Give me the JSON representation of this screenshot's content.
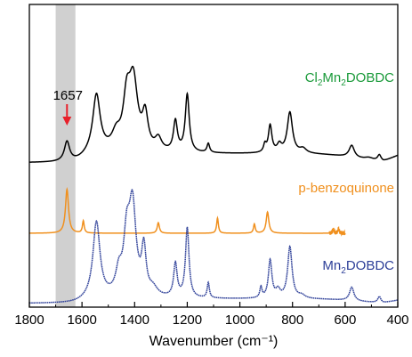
{
  "chart_data": {
    "type": "line",
    "title": "",
    "xlabel": "Wavenumber (cm⁻¹)",
    "ylabel": "",
    "xlim": [
      1800,
      400
    ],
    "x_reversed": true,
    "x_ticks": [
      "1800",
      "1600",
      "1400",
      "1200",
      "1000",
      "800",
      "600",
      "400"
    ],
    "highlight_band": {
      "x": [
        1700,
        1625
      ],
      "color": "#d0d0d0"
    },
    "annotation": {
      "text": "1657",
      "x": 1657,
      "arrow_color": "#e8202a"
    },
    "grid": false,
    "series": [
      {
        "name": "Cl2Mn2DOBDC",
        "label_parts": [
          {
            "t": "Cl",
            "sub": false
          },
          {
            "t": "2",
            "sub": true
          },
          {
            "t": "Mn",
            "sub": false
          },
          {
            "t": "2",
            "sub": true
          },
          {
            "t": "DOBDC",
            "sub": false
          }
        ],
        "color": "#000000",
        "baseline": 0.16,
        "peaks": [
          {
            "x": 1657,
            "h": 0.13,
            "w": 12
          },
          {
            "x": 1545,
            "h": 0.38,
            "w": 17
          },
          {
            "x": 1470,
            "h": 0.1,
            "w": 20
          },
          {
            "x": 1430,
            "h": 0.3,
            "w": 16
          },
          {
            "x": 1405,
            "h": 0.45,
            "w": 20
          },
          {
            "x": 1360,
            "h": 0.22,
            "w": 13
          },
          {
            "x": 1310,
            "h": 0.08,
            "w": 15
          },
          {
            "x": 1245,
            "h": 0.2,
            "w": 9
          },
          {
            "x": 1200,
            "h": 0.38,
            "w": 9
          },
          {
            "x": 1120,
            "h": 0.06,
            "w": 6
          },
          {
            "x": 905,
            "h": 0.05,
            "w": 6
          },
          {
            "x": 885,
            "h": 0.18,
            "w": 8
          },
          {
            "x": 850,
            "h": 0.05,
            "w": 10
          },
          {
            "x": 810,
            "h": 0.27,
            "w": 12
          },
          {
            "x": 760,
            "h": 0.03,
            "w": 15
          },
          {
            "x": 575,
            "h": 0.08,
            "w": 12
          },
          {
            "x": 510,
            "h": 0.015,
            "w": 20
          },
          {
            "x": 470,
            "h": 0.04,
            "w": 8
          }
        ],
        "tail": {
          "x": [
            450,
            400
          ],
          "value": 0.045
        }
      },
      {
        "name": "p-benzoquinone",
        "label_parts": [
          {
            "t": "p-benzoquinone",
            "sub": false
          }
        ],
        "color": "#f0901e",
        "baseline": 0.43,
        "range": [
          1800,
          600
        ],
        "peaks": [
          {
            "x": 1657,
            "h": 0.29,
            "w": 7
          },
          {
            "x": 1595,
            "h": 0.08,
            "w": 4
          },
          {
            "x": 1310,
            "h": 0.07,
            "w": 5
          },
          {
            "x": 1085,
            "h": 0.1,
            "w": 4
          },
          {
            "x": 945,
            "h": 0.06,
            "w": 4
          },
          {
            "x": 895,
            "h": 0.14,
            "w": 6
          },
          {
            "x": 645,
            "h": 0.025,
            "w": 3
          },
          {
            "x": 625,
            "h": 0.03,
            "w": 3
          }
        ]
      },
      {
        "name": "Mn2DOBDC",
        "label_parts": [
          {
            "t": "Mn",
            "sub": false
          },
          {
            "t": "2",
            "sub": true
          },
          {
            "t": "DOBDC",
            "sub": false
          }
        ],
        "color": "#2d3f98",
        "baseline": 0.0,
        "tail": {
          "x": [
            450,
            400
          ],
          "value": 0.02
        },
        "peaks": [
          {
            "x": 1545,
            "h": 0.5,
            "w": 16
          },
          {
            "x": 1460,
            "h": 0.14,
            "w": 14
          },
          {
            "x": 1430,
            "h": 0.35,
            "w": 14
          },
          {
            "x": 1408,
            "h": 0.58,
            "w": 16
          },
          {
            "x": 1365,
            "h": 0.3,
            "w": 10
          },
          {
            "x": 1330,
            "h": 0.05,
            "w": 20
          },
          {
            "x": 1245,
            "h": 0.22,
            "w": 8
          },
          {
            "x": 1200,
            "h": 0.46,
            "w": 8
          },
          {
            "x": 1120,
            "h": 0.1,
            "w": 5
          },
          {
            "x": 920,
            "h": 0.07,
            "w": 5
          },
          {
            "x": 885,
            "h": 0.25,
            "w": 8
          },
          {
            "x": 855,
            "h": 0.05,
            "w": 10
          },
          {
            "x": 810,
            "h": 0.34,
            "w": 10
          },
          {
            "x": 765,
            "h": 0.02,
            "w": 15
          },
          {
            "x": 575,
            "h": 0.09,
            "w": 10
          },
          {
            "x": 470,
            "h": 0.04,
            "w": 7
          }
        ]
      }
    ]
  }
}
